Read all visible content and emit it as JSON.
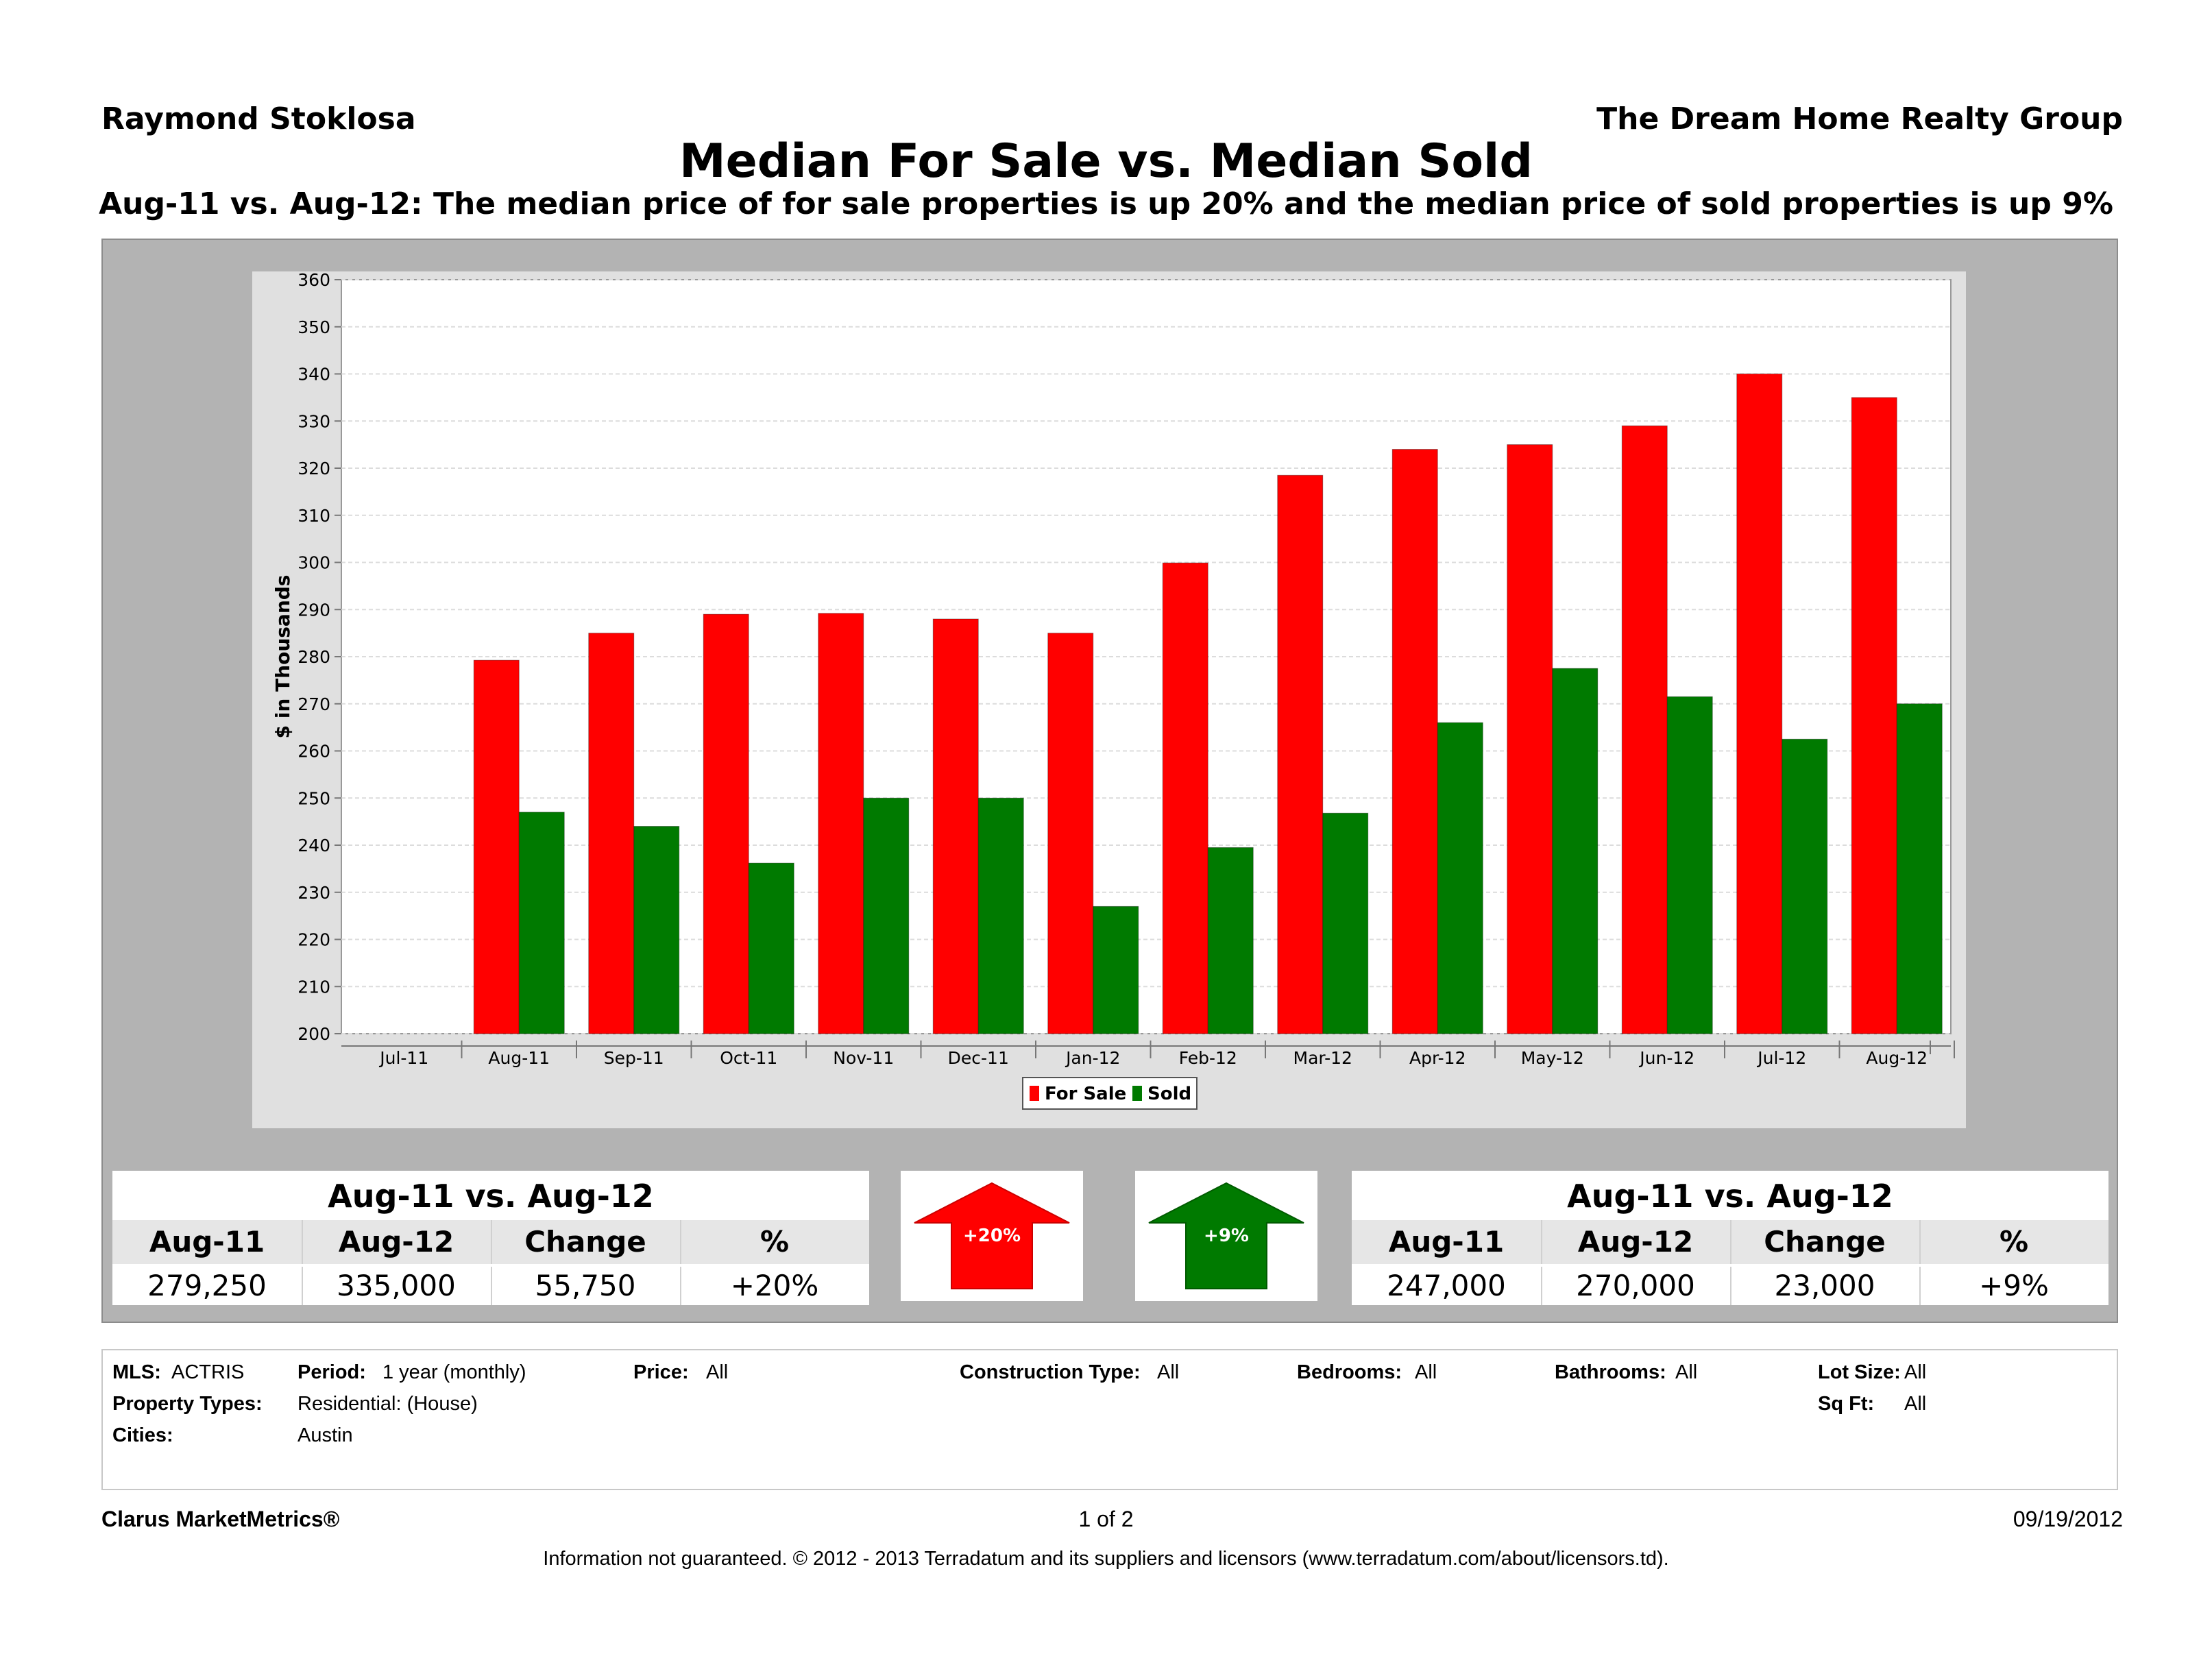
{
  "header": {
    "agent": "Raymond Stoklosa",
    "company": "The Dream Home Realty Group",
    "title": "Median For Sale vs. Median Sold",
    "subtitle": "Aug-11 vs. Aug-12:  The median price of for sale properties is up 20% and the median price of sold properties is up 9%"
  },
  "colors": {
    "for_sale": "#ff0000",
    "sold": "#007a00",
    "panel": "#b3b3b3"
  },
  "chart_data": {
    "type": "bar",
    "ylabel": "$ in Thousands",
    "xlabel": "",
    "ylim": [
      200,
      360
    ],
    "yticks": [
      200,
      210,
      220,
      230,
      240,
      250,
      260,
      270,
      280,
      290,
      300,
      310,
      320,
      330,
      340,
      350,
      360
    ],
    "categories": [
      "Jul-11",
      "Aug-11",
      "Sep-11",
      "Oct-11",
      "Nov-11",
      "Dec-11",
      "Jan-12",
      "Feb-12",
      "Mar-12",
      "Apr-12",
      "May-12",
      "Jun-12",
      "Jul-12",
      "Aug-12"
    ],
    "series": [
      {
        "name": "For Sale",
        "color": "#ff0000",
        "values": [
          null,
          279.25,
          285,
          289,
          289.2,
          288,
          285,
          299.9,
          318.5,
          324,
          325,
          329,
          340,
          335
        ]
      },
      {
        "name": "Sold",
        "color": "#007a00",
        "values": [
          null,
          247,
          244,
          236.2,
          250,
          250,
          227,
          239.5,
          246.8,
          266,
          277.5,
          271.5,
          262.5,
          270
        ]
      }
    ],
    "grid": true,
    "legend": "bottom-center"
  },
  "for_sale_stats": {
    "title": "Aug-11 vs. Aug-12",
    "headers": [
      "Aug-11",
      "Aug-12",
      "Change",
      "%"
    ],
    "values": [
      "279,250",
      "335,000",
      "55,750",
      "+20%"
    ],
    "arrow_label": "+20%"
  },
  "sold_stats": {
    "title": "Aug-11 vs. Aug-12",
    "headers": [
      "Aug-11",
      "Aug-12",
      "Change",
      "%"
    ],
    "values": [
      "247,000",
      "270,000",
      "23,000",
      "+9%"
    ],
    "arrow_label": "+9%"
  },
  "filters": {
    "mls_label": "MLS:",
    "mls_value": "ACTRIS",
    "period_label": "Period:",
    "period_value": "1 year (monthly)",
    "price_label": "Price:",
    "price_value": "All",
    "construction_label": "Construction Type:",
    "construction_value": "All",
    "bedrooms_label": "Bedrooms:",
    "bedrooms_value": "All",
    "bathrooms_label": "Bathrooms:",
    "bathrooms_value": "All",
    "lot_label": "Lot Size:",
    "lot_value": "All",
    "ptypes_label": "Property Types:",
    "ptypes_value": "Residential: (House)",
    "sqft_label": "Sq Ft:",
    "sqft_value": "All",
    "cities_label": "Cities:",
    "cities_value": "Austin"
  },
  "footer": {
    "brand": "Clarus MarketMetrics®",
    "page": "1 of 2",
    "date": "09/19/2012",
    "disclaimer": "Information not guaranteed.  © 2012 - 2013 Terradatum and its suppliers and licensors (www.terradatum.com/about/licensors.td)."
  }
}
